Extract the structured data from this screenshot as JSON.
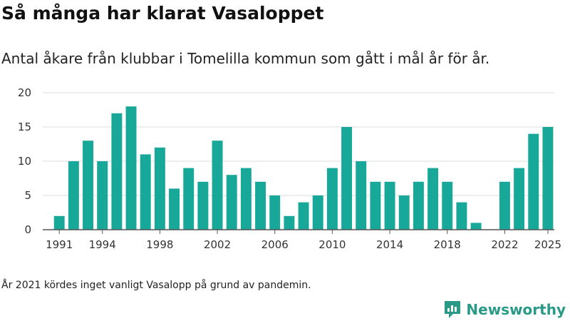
{
  "title": "Så många har klarat Vasaloppet",
  "subtitle": "Antal åkare från klubbar i Tomelilla kommun som gått i mål år för år.",
  "footnote": "År 2021 kördes inget vanligt Vasalopp på grund av pandemin.",
  "brand": {
    "name": "Newsworthy",
    "color": "#2a9a88"
  },
  "chart_data": {
    "type": "bar",
    "title": "Så många har klarat Vasaloppet",
    "xlabel": "",
    "ylabel": "",
    "ylim": [
      0,
      20
    ],
    "yticks": [
      0,
      5,
      10,
      15,
      20
    ],
    "xtick_labels": [
      "1991",
      "1994",
      "1998",
      "2002",
      "2006",
      "2010",
      "2014",
      "2018",
      "2022",
      "2025"
    ],
    "bar_color": "#17a89a",
    "grid": true,
    "categories": [
      1991,
      1992,
      1993,
      1994,
      1995,
      1996,
      1997,
      1998,
      1999,
      2000,
      2001,
      2002,
      2003,
      2004,
      2005,
      2006,
      2007,
      2008,
      2009,
      2010,
      2011,
      2012,
      2013,
      2014,
      2015,
      2016,
      2017,
      2018,
      2019,
      2020,
      2021,
      2022,
      2023,
      2024,
      2025
    ],
    "values": [
      2,
      10,
      13,
      10,
      17,
      18,
      11,
      12,
      6,
      9,
      7,
      13,
      8,
      9,
      7,
      5,
      2,
      4,
      5,
      9,
      15,
      10,
      7,
      7,
      5,
      7,
      9,
      7,
      4,
      1,
      0,
      7,
      9,
      14,
      15
    ]
  }
}
